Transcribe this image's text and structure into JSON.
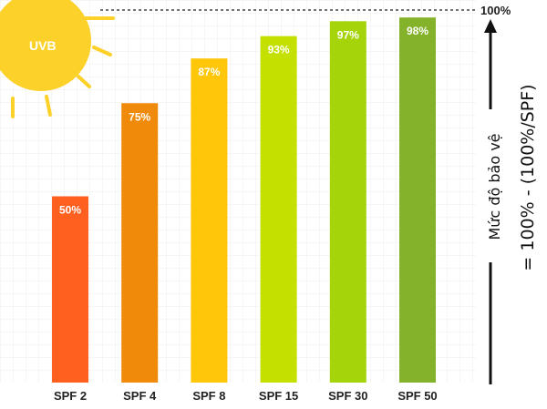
{
  "chart_data": {
    "type": "bar",
    "categories": [
      "SPF 2",
      "SPF 4",
      "SPF 8",
      "SPF 15",
      "SPF 30",
      "SPF 50"
    ],
    "values": [
      50,
      75,
      87,
      93,
      97,
      98
    ],
    "value_labels": [
      "50%",
      "75%",
      "87%",
      "93%",
      "97%",
      "98%"
    ],
    "bar_colors": [
      "#ff5f1f",
      "#f08a0a",
      "#ffc60a",
      "#c4e000",
      "#a6d40a",
      "#84b22a"
    ],
    "ylim": [
      0,
      100
    ],
    "max_line_label": "100%",
    "grid": true,
    "legend": "none"
  },
  "decor": {
    "sun_label": "UVB",
    "sun_color": "#fcd12a",
    "side_line1": "Mức độ bảo vệ",
    "side_line2": "= 100% - (100%/SPF)"
  }
}
